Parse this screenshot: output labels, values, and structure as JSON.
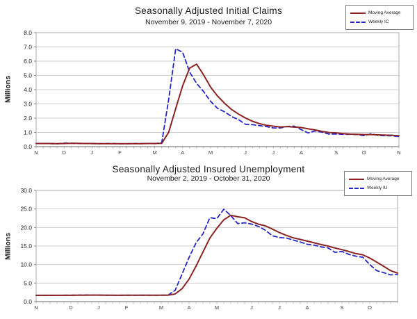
{
  "page": {
    "background": "#ffffff",
    "colors": {
      "moving_average_line": "#8b2323",
      "weekly_line": "#2424c8",
      "gridline": "#cdcdcd",
      "plot_border": "#a9a9a9"
    }
  },
  "chart_data": [
    {
      "type": "line",
      "title": "Seasonally Adjusted Initial Claims",
      "subtitle": "November 9, 2019 - November 7, 2020",
      "ylabel": "Millions",
      "ylim": [
        0,
        8
      ],
      "ystep": 1,
      "y_tick_labels": [
        "0.0",
        "1.0",
        "2.0",
        "3.0",
        "4.0",
        "5.0",
        "6.0",
        "7.0",
        "8.0"
      ],
      "grid": true,
      "legend_position": "top-right",
      "x_unit": "weeks",
      "n_weeks": 53,
      "month_tick_labels": [
        {
          "label": "N",
          "week": 0
        },
        {
          "label": "D",
          "week": 4
        },
        {
          "label": "J",
          "week": 8
        },
        {
          "label": "F",
          "week": 12
        },
        {
          "label": "M",
          "week": 17
        },
        {
          "label": "A",
          "week": 21
        },
        {
          "label": "M",
          "week": 25
        },
        {
          "label": "J",
          "week": 30
        },
        {
          "label": "J",
          "week": 34
        },
        {
          "label": "A",
          "week": 38
        },
        {
          "label": "S",
          "week": 43
        },
        {
          "label": "O",
          "week": 47
        },
        {
          "label": "N",
          "week": 52
        }
      ],
      "series": [
        {
          "name": "Moving Average",
          "color": "#8b2323",
          "style": "solid",
          "values": [
            0.22,
            0.22,
            0.22,
            0.21,
            0.22,
            0.23,
            0.23,
            0.22,
            0.22,
            0.21,
            0.21,
            0.21,
            0.21,
            0.21,
            0.21,
            0.21,
            0.22,
            0.22,
            0.23,
            1.01,
            2.67,
            4.27,
            5.51,
            5.79,
            5.04,
            4.18,
            3.55,
            3.05,
            2.61,
            2.29,
            2.01,
            1.78,
            1.62,
            1.5,
            1.44,
            1.38,
            1.41,
            1.37,
            1.34,
            1.25,
            1.17,
            1.07,
            0.99,
            0.97,
            0.91,
            0.88,
            0.87,
            0.85,
            0.85,
            0.83,
            0.81,
            0.8,
            0.76
          ]
        },
        {
          "name": "Weekly IC",
          "color": "#2424c8",
          "style": "dashed",
          "values": [
            0.22,
            0.22,
            0.21,
            0.2,
            0.25,
            0.24,
            0.22,
            0.22,
            0.21,
            0.21,
            0.22,
            0.22,
            0.2,
            0.2,
            0.22,
            0.22,
            0.22,
            0.21,
            0.28,
            3.31,
            6.87,
            6.62,
            5.24,
            4.44,
            3.87,
            3.18,
            2.69,
            2.45,
            2.12,
            1.9,
            1.57,
            1.54,
            1.48,
            1.41,
            1.31,
            1.31,
            1.42,
            1.44,
            1.19,
            0.96,
            1.1,
            1.01,
            0.88,
            0.89,
            0.87,
            0.87,
            0.85,
            0.77,
            0.9,
            0.79,
            0.76,
            0.76,
            0.71
          ]
        }
      ]
    },
    {
      "type": "line",
      "title": "Seasonally Adjusted Insured Unemployment",
      "subtitle": "November 2, 2019 - October 31, 2020",
      "ylabel": "Millions",
      "ylim": [
        0,
        30
      ],
      "ystep": 5,
      "y_tick_labels": [
        "0.0",
        "5.0",
        "10.0",
        "15.0",
        "20.0",
        "25.0",
        "30.0"
      ],
      "grid": true,
      "legend_position": "top-right",
      "x_unit": "weeks",
      "n_weeks": 53,
      "month_tick_labels": [
        {
          "label": "N",
          "week": 0
        },
        {
          "label": "D",
          "week": 5
        },
        {
          "label": "J",
          "week": 9
        },
        {
          "label": "F",
          "week": 13
        },
        {
          "label": "M",
          "week": 18
        },
        {
          "label": "A",
          "week": 22
        },
        {
          "label": "M",
          "week": 26
        },
        {
          "label": "J",
          "week": 31
        },
        {
          "label": "J",
          "week": 35
        },
        {
          "label": "A",
          "week": 39
        },
        {
          "label": "S",
          "week": 44
        },
        {
          "label": "O",
          "week": 48
        }
      ],
      "series": [
        {
          "name": "Moving Average",
          "color": "#8b2323",
          "style": "solid",
          "values": [
            1.71,
            1.71,
            1.7,
            1.7,
            1.7,
            1.7,
            1.72,
            1.74,
            1.77,
            1.77,
            1.75,
            1.73,
            1.71,
            1.72,
            1.72,
            1.72,
            1.72,
            1.72,
            1.72,
            1.74,
            2.07,
            3.5,
            6.05,
            9.56,
            13.37,
            17.17,
            19.78,
            22.06,
            23.29,
            22.89,
            22.62,
            21.62,
            20.89,
            20.43,
            19.55,
            18.64,
            17.86,
            17.21,
            16.79,
            16.34,
            15.86,
            15.4,
            15.0,
            14.45,
            14.02,
            13.52,
            12.96,
            12.64,
            11.76,
            10.66,
            9.55,
            8.36,
            7.68
          ]
        },
        {
          "name": "Weekly IU",
          "color": "#2424c8",
          "style": "dashed",
          "values": [
            1.69,
            1.69,
            1.67,
            1.7,
            1.72,
            1.72,
            1.76,
            1.8,
            1.77,
            1.75,
            1.72,
            1.7,
            1.72,
            1.73,
            1.7,
            1.73,
            1.72,
            1.7,
            1.72,
            1.78,
            3.06,
            7.45,
            11.91,
            15.82,
            18.28,
            22.65,
            22.38,
            24.91,
            23.23,
            21.05,
            21.27,
            20.93,
            20.29,
            19.23,
            17.75,
            17.3,
            17.16,
            16.62,
            16.09,
            15.48,
            15.25,
            14.76,
            14.49,
            13.29,
            13.54,
            12.75,
            12.27,
            11.98,
            10.02,
            8.37,
            7.82,
            7.22,
            7.29
          ]
        }
      ]
    }
  ]
}
